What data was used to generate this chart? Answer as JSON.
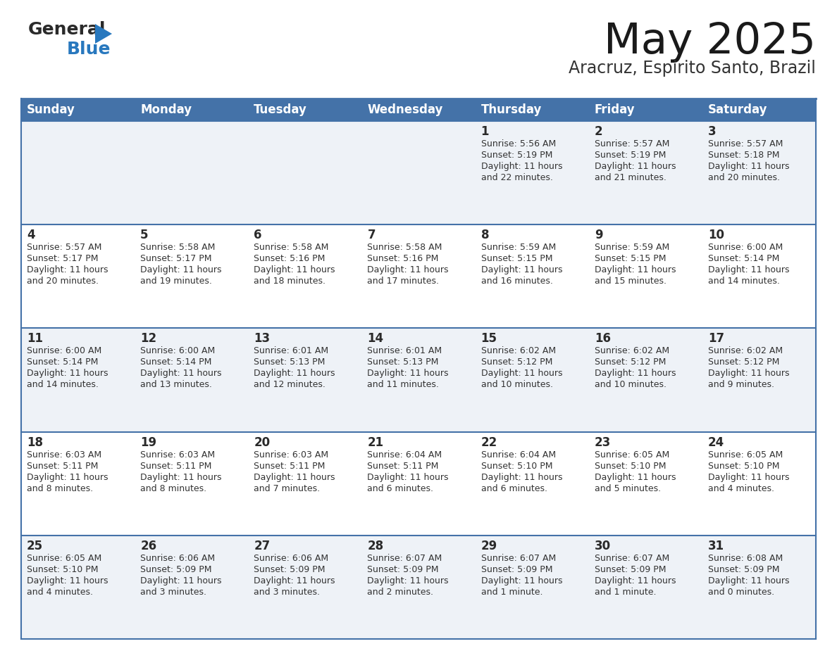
{
  "title": "May 2025",
  "subtitle": "Aracruz, Espirito Santo, Brazil",
  "header_bg": "#4472a8",
  "header_text": "#ffffff",
  "row_bg_odd": "#eef2f7",
  "row_bg_even": "#ffffff",
  "border_color": "#4472a8",
  "day_names": [
    "Sunday",
    "Monday",
    "Tuesday",
    "Wednesday",
    "Thursday",
    "Friday",
    "Saturday"
  ],
  "days": [
    {
      "day": 1,
      "col": 4,
      "row": 0,
      "sunrise": "5:56 AM",
      "sunset": "5:19 PM",
      "daylight_hrs": 11,
      "daylight_min": 22
    },
    {
      "day": 2,
      "col": 5,
      "row": 0,
      "sunrise": "5:57 AM",
      "sunset": "5:19 PM",
      "daylight_hrs": 11,
      "daylight_min": 21
    },
    {
      "day": 3,
      "col": 6,
      "row": 0,
      "sunrise": "5:57 AM",
      "sunset": "5:18 PM",
      "daylight_hrs": 11,
      "daylight_min": 20
    },
    {
      "day": 4,
      "col": 0,
      "row": 1,
      "sunrise": "5:57 AM",
      "sunset": "5:17 PM",
      "daylight_hrs": 11,
      "daylight_min": 20
    },
    {
      "day": 5,
      "col": 1,
      "row": 1,
      "sunrise": "5:58 AM",
      "sunset": "5:17 PM",
      "daylight_hrs": 11,
      "daylight_min": 19
    },
    {
      "day": 6,
      "col": 2,
      "row": 1,
      "sunrise": "5:58 AM",
      "sunset": "5:16 PM",
      "daylight_hrs": 11,
      "daylight_min": 18
    },
    {
      "day": 7,
      "col": 3,
      "row": 1,
      "sunrise": "5:58 AM",
      "sunset": "5:16 PM",
      "daylight_hrs": 11,
      "daylight_min": 17
    },
    {
      "day": 8,
      "col": 4,
      "row": 1,
      "sunrise": "5:59 AM",
      "sunset": "5:15 PM",
      "daylight_hrs": 11,
      "daylight_min": 16
    },
    {
      "day": 9,
      "col": 5,
      "row": 1,
      "sunrise": "5:59 AM",
      "sunset": "5:15 PM",
      "daylight_hrs": 11,
      "daylight_min": 15
    },
    {
      "day": 10,
      "col": 6,
      "row": 1,
      "sunrise": "6:00 AM",
      "sunset": "5:14 PM",
      "daylight_hrs": 11,
      "daylight_min": 14
    },
    {
      "day": 11,
      "col": 0,
      "row": 2,
      "sunrise": "6:00 AM",
      "sunset": "5:14 PM",
      "daylight_hrs": 11,
      "daylight_min": 14
    },
    {
      "day": 12,
      "col": 1,
      "row": 2,
      "sunrise": "6:00 AM",
      "sunset": "5:14 PM",
      "daylight_hrs": 11,
      "daylight_min": 13
    },
    {
      "day": 13,
      "col": 2,
      "row": 2,
      "sunrise": "6:01 AM",
      "sunset": "5:13 PM",
      "daylight_hrs": 11,
      "daylight_min": 12
    },
    {
      "day": 14,
      "col": 3,
      "row": 2,
      "sunrise": "6:01 AM",
      "sunset": "5:13 PM",
      "daylight_hrs": 11,
      "daylight_min": 11
    },
    {
      "day": 15,
      "col": 4,
      "row": 2,
      "sunrise": "6:02 AM",
      "sunset": "5:12 PM",
      "daylight_hrs": 11,
      "daylight_min": 10
    },
    {
      "day": 16,
      "col": 5,
      "row": 2,
      "sunrise": "6:02 AM",
      "sunset": "5:12 PM",
      "daylight_hrs": 11,
      "daylight_min": 10
    },
    {
      "day": 17,
      "col": 6,
      "row": 2,
      "sunrise": "6:02 AM",
      "sunset": "5:12 PM",
      "daylight_hrs": 11,
      "daylight_min": 9
    },
    {
      "day": 18,
      "col": 0,
      "row": 3,
      "sunrise": "6:03 AM",
      "sunset": "5:11 PM",
      "daylight_hrs": 11,
      "daylight_min": 8
    },
    {
      "day": 19,
      "col": 1,
      "row": 3,
      "sunrise": "6:03 AM",
      "sunset": "5:11 PM",
      "daylight_hrs": 11,
      "daylight_min": 8
    },
    {
      "day": 20,
      "col": 2,
      "row": 3,
      "sunrise": "6:03 AM",
      "sunset": "5:11 PM",
      "daylight_hrs": 11,
      "daylight_min": 7
    },
    {
      "day": 21,
      "col": 3,
      "row": 3,
      "sunrise": "6:04 AM",
      "sunset": "5:11 PM",
      "daylight_hrs": 11,
      "daylight_min": 6
    },
    {
      "day": 22,
      "col": 4,
      "row": 3,
      "sunrise": "6:04 AM",
      "sunset": "5:10 PM",
      "daylight_hrs": 11,
      "daylight_min": 6
    },
    {
      "day": 23,
      "col": 5,
      "row": 3,
      "sunrise": "6:05 AM",
      "sunset": "5:10 PM",
      "daylight_hrs": 11,
      "daylight_min": 5
    },
    {
      "day": 24,
      "col": 6,
      "row": 3,
      "sunrise": "6:05 AM",
      "sunset": "5:10 PM",
      "daylight_hrs": 11,
      "daylight_min": 4
    },
    {
      "day": 25,
      "col": 0,
      "row": 4,
      "sunrise": "6:05 AM",
      "sunset": "5:10 PM",
      "daylight_hrs": 11,
      "daylight_min": 4
    },
    {
      "day": 26,
      "col": 1,
      "row": 4,
      "sunrise": "6:06 AM",
      "sunset": "5:09 PM",
      "daylight_hrs": 11,
      "daylight_min": 3
    },
    {
      "day": 27,
      "col": 2,
      "row": 4,
      "sunrise": "6:06 AM",
      "sunset": "5:09 PM",
      "daylight_hrs": 11,
      "daylight_min": 3
    },
    {
      "day": 28,
      "col": 3,
      "row": 4,
      "sunrise": "6:07 AM",
      "sunset": "5:09 PM",
      "daylight_hrs": 11,
      "daylight_min": 2
    },
    {
      "day": 29,
      "col": 4,
      "row": 4,
      "sunrise": "6:07 AM",
      "sunset": "5:09 PM",
      "daylight_hrs": 11,
      "daylight_min": 1
    },
    {
      "day": 30,
      "col": 5,
      "row": 4,
      "sunrise": "6:07 AM",
      "sunset": "5:09 PM",
      "daylight_hrs": 11,
      "daylight_min": 1
    },
    {
      "day": 31,
      "col": 6,
      "row": 4,
      "sunrise": "6:08 AM",
      "sunset": "5:09 PM",
      "daylight_hrs": 11,
      "daylight_min": 0
    }
  ],
  "num_rows": 5,
  "num_cols": 7,
  "logo_general_color": "#2a2a2a",
  "logo_blue_color": "#2878be",
  "title_color": "#1a1a1a",
  "subtitle_color": "#333333",
  "day_num_color": "#2a2a2a",
  "cell_text_color": "#333333"
}
